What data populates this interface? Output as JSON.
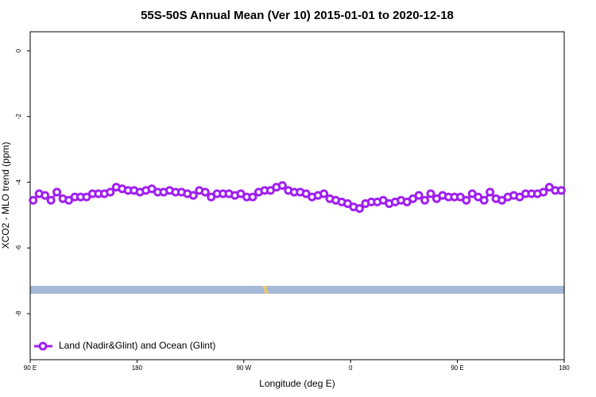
{
  "chart_data": {
    "type": "line",
    "title": "55S-50S Annual Mean (Ver 10)   2015-01-01 to 2020-12-18",
    "x_label": "Longitude (deg E)",
    "y_label": "XCO2 - MLO trend (ppm)",
    "xlim": [
      90,
      540
    ],
    "ylim": [
      -9.4,
      0.58
    ],
    "xticks": [
      {
        "value": 90,
        "label": "90 E"
      },
      180,
      {
        "value": 270,
        "label": "90 W"
      },
      {
        "value": 360,
        "label": "0"
      },
      {
        "value": 450,
        "label": "90 E"
      },
      {
        "value": 540,
        "label": "180"
      }
    ],
    "yticks": [
      0,
      -2,
      -4,
      -6,
      -8
    ],
    "legend": "bottom-left",
    "x": [
      92.5,
      97.5,
      102.5,
      107.5,
      112.5,
      117.5,
      122.5,
      127.5,
      132.5,
      137.5,
      142.5,
      147.5,
      152.5,
      157.5,
      162.5,
      167.5,
      172.5,
      177.5,
      182.5,
      187.5,
      192.5,
      197.5,
      202.5,
      207.5,
      212.5,
      217.5,
      222.5,
      227.5,
      232.5,
      237.5,
      242.5,
      247.5,
      252.5,
      257.5,
      262.5,
      267.5,
      272.5,
      277.5,
      282.5,
      287.5,
      292.5,
      297.5,
      302.5,
      307.5,
      312.5,
      317.5,
      322.5,
      327.5,
      332.5,
      337.5,
      342.5,
      347.5,
      352.5,
      357.5,
      362.5,
      367.5,
      372.5,
      377.5,
      382.5,
      387.5,
      392.5,
      397.5,
      402.5,
      407.5,
      412.5,
      417.5,
      422.5,
      427.5,
      432.5,
      437.5,
      442.5,
      447.5,
      452.5,
      457.5,
      462.5,
      467.5,
      472.5,
      477.5,
      482.5,
      487.5,
      492.5,
      497.5,
      502.5,
      507.5,
      512.5,
      517.5,
      522.5,
      527.5,
      532.5,
      537.5
    ],
    "series": [
      {
        "name": "Land (Nadir&Glint) and Ocean (Glint)",
        "color": "#a020f0",
        "values": [
          -4.55,
          -4.35,
          -4.4,
          -4.55,
          -4.3,
          -4.5,
          -4.55,
          -4.45,
          -4.45,
          -4.45,
          -4.35,
          -4.35,
          -4.35,
          -4.3,
          -4.15,
          -4.2,
          -4.25,
          -4.25,
          -4.3,
          -4.25,
          -4.2,
          -4.3,
          -4.3,
          -4.25,
          -4.3,
          -4.3,
          -4.35,
          -4.4,
          -4.25,
          -4.3,
          -4.45,
          -4.35,
          -4.35,
          -4.35,
          -4.4,
          -4.35,
          -4.45,
          -4.45,
          -4.3,
          -4.25,
          -4.25,
          -4.15,
          -4.1,
          -4.25,
          -4.3,
          -4.3,
          -4.35,
          -4.45,
          -4.4,
          -4.35,
          -4.5,
          -4.55,
          -4.6,
          -4.65,
          -4.75,
          -4.8,
          -4.65,
          -4.6,
          -4.6,
          -4.55,
          -4.65,
          -4.6,
          -4.55,
          -4.6,
          -4.5,
          -4.4,
          -4.55,
          -4.35,
          -4.5,
          -4.4,
          -4.45,
          -4.45,
          -4.45,
          -4.55,
          -4.35,
          -4.45,
          -4.55,
          -4.3,
          -4.5,
          -4.55,
          -4.45,
          -4.4,
          -4.45,
          -4.35,
          -4.35,
          -4.35,
          -4.3,
          -4.15,
          -4.25,
          -4.25
        ]
      }
    ]
  }
}
